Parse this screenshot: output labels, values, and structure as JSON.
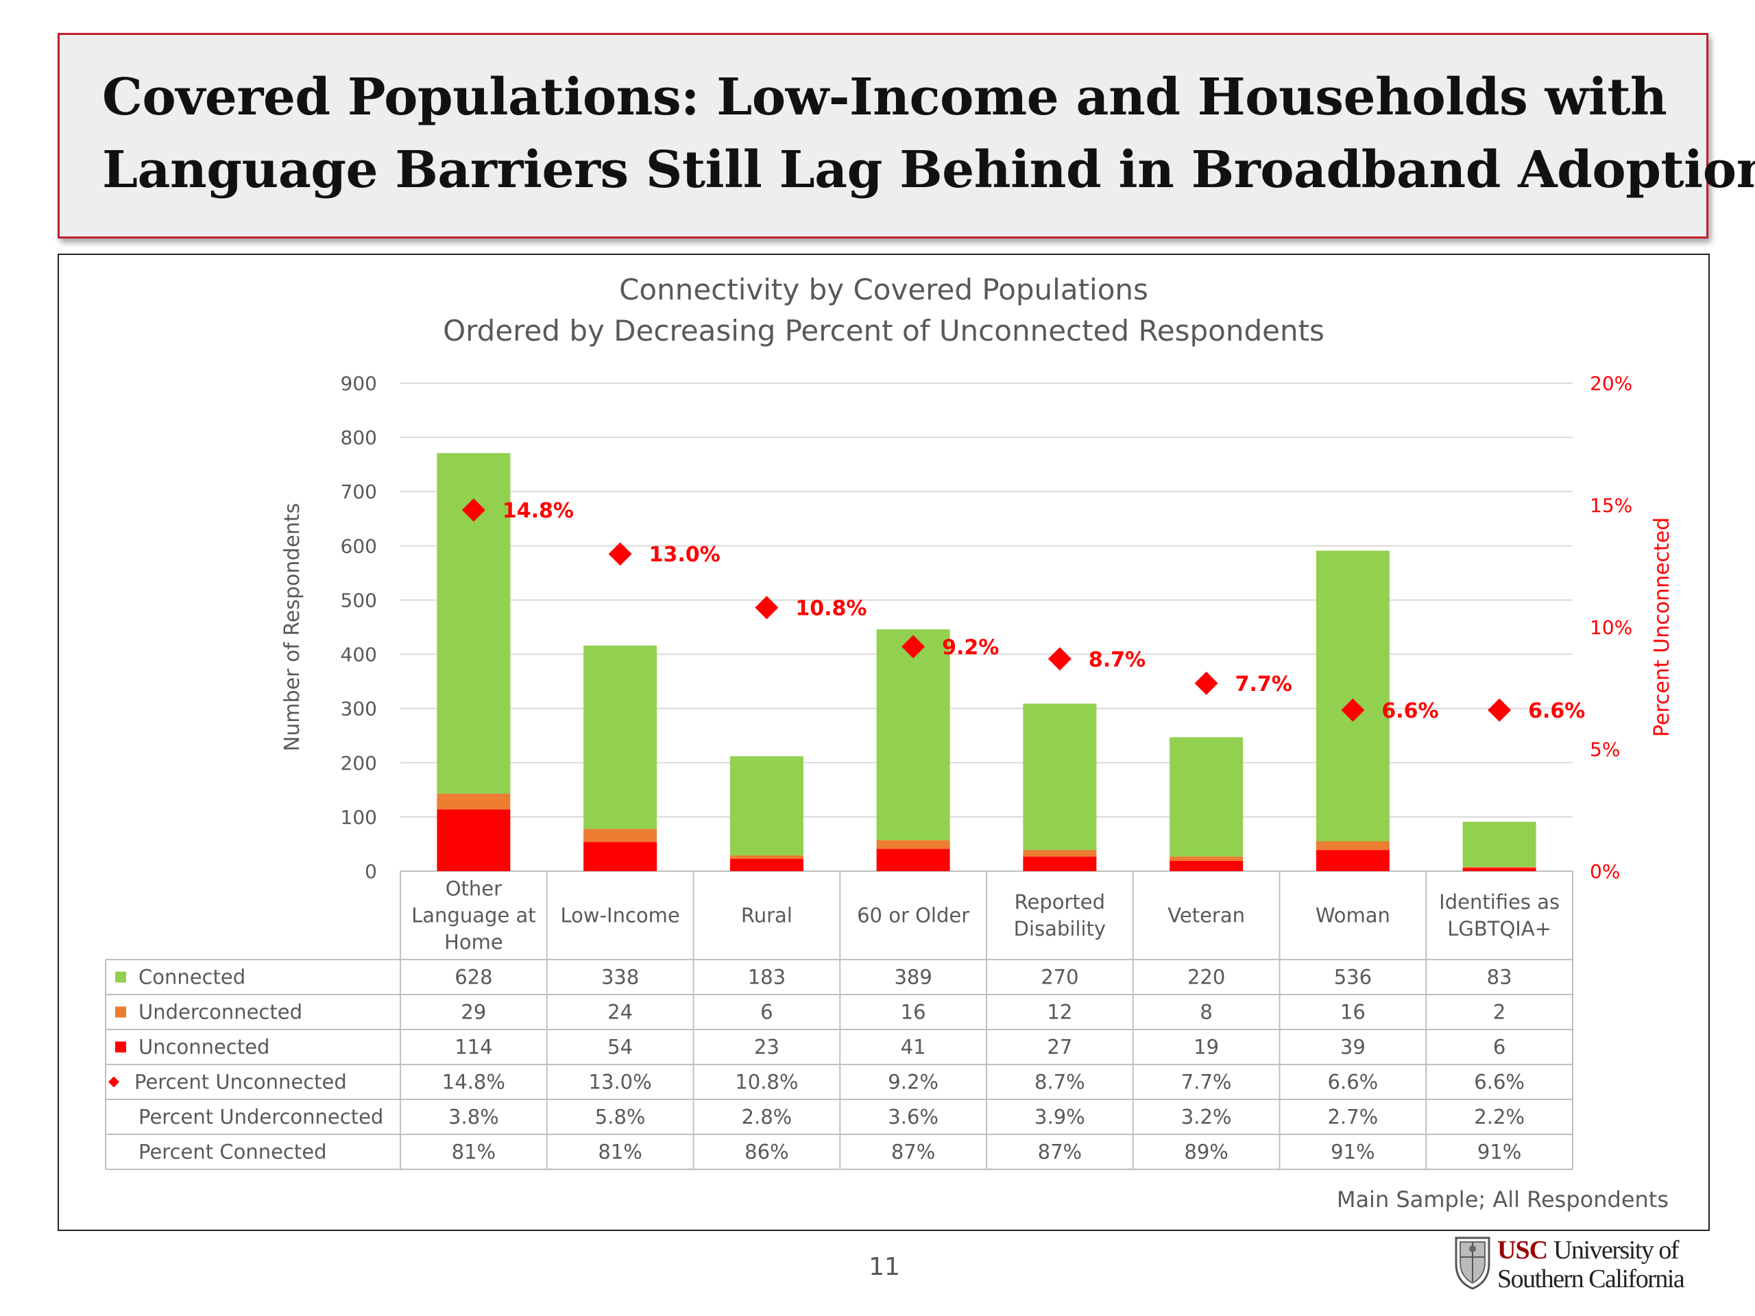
{
  "slide": {
    "title_line1": "Covered Populations: Low-Income and Households with",
    "title_line2": "Language Barriers Still Lag Behind in Broadband Adoption",
    "page_number": "11",
    "logo": {
      "usc": "USC",
      "line1_rest": "University of",
      "line2": "Southern California"
    }
  },
  "colors": {
    "connected": "#92d050",
    "underconnected": "#ed7d31",
    "unconnected": "#ff0000",
    "percent_marker": "#ff0000",
    "title_border": "#c0202a"
  },
  "chart_data": {
    "type": "bar",
    "stacked": true,
    "title": "Connectivity by Covered Populations",
    "subtitle": "Ordered by Decreasing Percent of Unconnected Respondents",
    "ylabel": "Number of Respondents",
    "y2label": "Percent Unconnected",
    "ylim": [
      0,
      900
    ],
    "y_ticks": [
      "0",
      "100",
      "200",
      "300",
      "400",
      "500",
      "600",
      "700",
      "800",
      "900"
    ],
    "y2lim": [
      0,
      20
    ],
    "y2_ticks": [
      "0%",
      "5%",
      "10%",
      "15%",
      "20%"
    ],
    "grid": true,
    "source_note": "Main Sample; All Respondents",
    "categories": [
      [
        "Other",
        "Language at",
        "Home"
      ],
      [
        "Low-Income"
      ],
      [
        "Rural"
      ],
      [
        "60 or Older"
      ],
      [
        "Reported",
        "Disability"
      ],
      [
        "Veteran"
      ],
      [
        "Woman"
      ],
      [
        "Identifies as",
        "LGBTQIA+"
      ]
    ],
    "series": [
      {
        "name": "Unconnected",
        "values": [
          114,
          54,
          23,
          41,
          27,
          19,
          39,
          6
        ]
      },
      {
        "name": "Underconnected",
        "values": [
          29,
          24,
          6,
          16,
          12,
          8,
          16,
          2
        ]
      },
      {
        "name": "Connected",
        "values": [
          628,
          338,
          183,
          389,
          270,
          220,
          536,
          83
        ]
      }
    ],
    "percent_unconnected": {
      "name": "Percent Unconnected",
      "values": [
        14.8,
        13.0,
        10.8,
        9.2,
        8.7,
        7.7,
        6.6,
        6.6
      ],
      "labels": [
        "14.8%",
        "13.0%",
        "10.8%",
        "9.2%",
        "8.7%",
        "7.7%",
        "6.6%",
        "6.6%"
      ]
    },
    "table": {
      "rows": [
        {
          "label": "Connected",
          "marker": "square",
          "color": "#92d050",
          "values": [
            "628",
            "338",
            "183",
            "389",
            "270",
            "220",
            "536",
            "83"
          ]
        },
        {
          "label": "Underconnected",
          "marker": "square",
          "color": "#ed7d31",
          "values": [
            "29",
            "24",
            "6",
            "16",
            "12",
            "8",
            "16",
            "2"
          ]
        },
        {
          "label": "Unconnected",
          "marker": "square",
          "color": "#ff0000",
          "values": [
            "114",
            "54",
            "23",
            "41",
            "27",
            "19",
            "39",
            "6"
          ]
        },
        {
          "label": "Percent Unconnected",
          "marker": "diamond",
          "color": "#ff0000",
          "values": [
            "14.8%",
            "13.0%",
            "10.8%",
            "9.2%",
            "8.7%",
            "7.7%",
            "6.6%",
            "6.6%"
          ]
        },
        {
          "label": "Percent Underconnected",
          "marker": "none",
          "color": "",
          "values": [
            "3.8%",
            "5.8%",
            "2.8%",
            "3.6%",
            "3.9%",
            "3.2%",
            "2.7%",
            "2.2%"
          ]
        },
        {
          "label": "Percent Connected",
          "marker": "none",
          "color": "",
          "values": [
            "81%",
            "81%",
            "86%",
            "87%",
            "87%",
            "89%",
            "91%",
            "91%"
          ]
        }
      ]
    }
  }
}
